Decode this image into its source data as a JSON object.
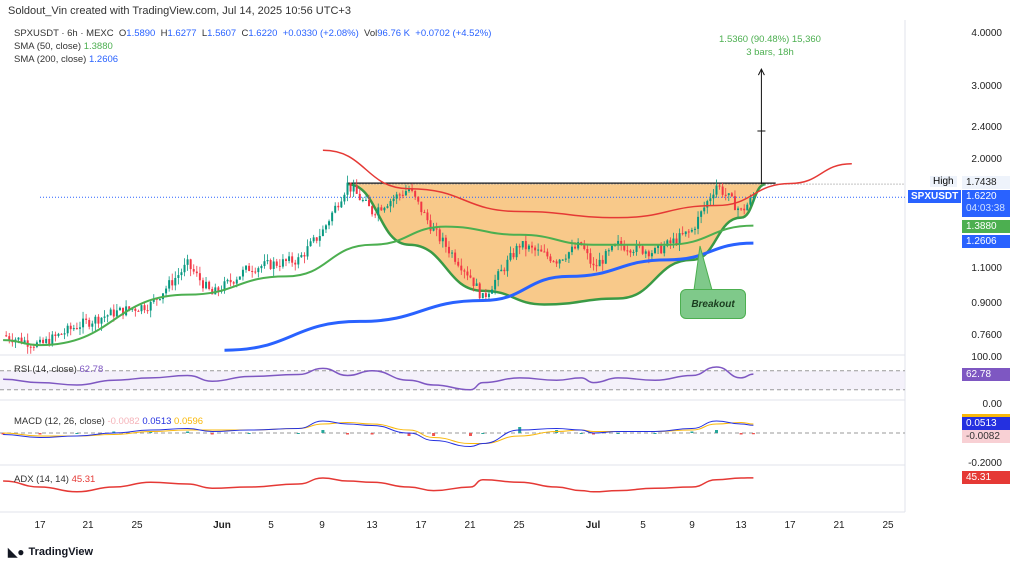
{
  "header": {
    "credit": "Soldout_Vin created with TradingView.com, Jul 14, 2025 10:56 UTC+3"
  },
  "legend": {
    "symbol": "SPXUSDT · 6h · MEXC",
    "o_label": "O",
    "o": "1.5890",
    "h_label": "H",
    "h": "1.6277",
    "l_label": "L",
    "l": "1.5607",
    "c_label": "C",
    "c": "1.6220",
    "change": "+0.0330 (+2.08%)",
    "vol_label": "Vol",
    "vol": "96.76 K",
    "vol_change": "+0.0702 (+4.52%)",
    "sma50_label": "SMA (50, close)",
    "sma50": "1.3880",
    "sma200_label": "SMA (200, close)",
    "sma200": "1.2606"
  },
  "annotation": {
    "measure": "1.5360 (90.48%) 15,360",
    "bars": "3 bars, 18h",
    "callout": "Breakout"
  },
  "price_axis": {
    "ticks": [
      "4.0000",
      "3.0000",
      "2.4000",
      "2.0000",
      "1.1000",
      "0.9000",
      "0.7600"
    ],
    "high_label": "High",
    "high": "1.7438",
    "symbol_tag": "SPXUSDT",
    "last": "1.6220",
    "countdown": "04:03:38",
    "sma50_tag": "1.3880",
    "sma200_tag": "1.2606"
  },
  "time_axis": [
    "17",
    "21",
    "25",
    "Jun",
    "5",
    "9",
    "13",
    "17",
    "21",
    "25",
    "Jul",
    "5",
    "9",
    "13",
    "17",
    "21",
    "25"
  ],
  "rsi": {
    "label": "RSI (14, close)",
    "value": "62.78",
    "top": "100.00"
  },
  "macd": {
    "label": "MACD (12, 26, close)",
    "hist": "-0.0082",
    "macd": "0.0513",
    "signal": "0.0596",
    "zero": "0.00",
    "low": "-0.2000"
  },
  "adx": {
    "label": "ADX (14, 14)",
    "value": "45.31"
  },
  "footer": {
    "brand": "TradingView"
  },
  "colors": {
    "up": "#089981",
    "down": "#f23645",
    "sma50": "#4caf50",
    "sma200": "#2962ff",
    "arc": "#e53935",
    "cup": "#f8c98a",
    "rsi": "#7e57c2",
    "adx": "#e53935"
  },
  "chart_data": {
    "type": "candlestick",
    "scale": "log",
    "ylim": [
      0.7,
      4.2
    ],
    "close": [
      [
        "2025-05-14",
        0.76
      ],
      [
        "2025-05-17",
        0.72
      ],
      [
        "2025-05-20",
        0.8
      ],
      [
        "2025-05-23",
        0.86
      ],
      [
        "2025-05-26",
        0.9
      ],
      [
        "2025-05-29",
        1.12
      ],
      [
        "2025-05-31",
        0.95
      ],
      [
        "2025-06-03",
        1.1
      ],
      [
        "2025-06-07",
        1.15
      ],
      [
        "2025-06-09",
        1.35
      ],
      [
        "2025-06-11",
        1.74
      ],
      [
        "2025-06-13",
        1.5
      ],
      [
        "2025-06-16",
        1.7
      ],
      [
        "2025-06-18",
        1.35
      ],
      [
        "2025-06-21",
        1.05
      ],
      [
        "2025-06-22",
        0.93
      ],
      [
        "2025-06-25",
        1.25
      ],
      [
        "2025-06-28",
        1.15
      ],
      [
        "2025-06-30",
        1.25
      ],
      [
        "2025-07-01",
        1.1
      ],
      [
        "2025-07-03",
        1.25
      ],
      [
        "2025-07-06",
        1.2
      ],
      [
        "2025-07-09",
        1.35
      ],
      [
        "2025-07-11",
        1.74
      ],
      [
        "2025-07-13",
        1.5
      ],
      [
        "2025-07-14",
        1.62
      ]
    ],
    "sma50": [
      [
        "2025-05-14",
        0.74
      ],
      [
        "2025-05-17",
        0.72
      ],
      [
        "2025-05-29",
        0.95
      ],
      [
        "2025-06-06",
        1.05
      ],
      [
        "2025-06-13",
        1.25
      ],
      [
        "2025-06-19",
        1.38
      ],
      [
        "2025-06-25",
        1.32
      ],
      [
        "2025-07-01",
        1.25
      ],
      [
        "2025-07-07",
        1.25
      ],
      [
        "2025-07-14",
        1.388
      ]
    ],
    "sma200": [
      [
        "2025-06-01",
        0.7
      ],
      [
        "2025-06-12",
        0.82
      ],
      [
        "2025-06-22",
        0.92
      ],
      [
        "2025-06-29",
        1.05
      ],
      [
        "2025-07-07",
        1.15
      ],
      [
        "2025-07-14",
        1.2606
      ]
    ],
    "arc": [
      [
        "2025-06-09",
        2.1
      ],
      [
        "2025-06-16",
        1.7
      ],
      [
        "2025-06-25",
        1.5
      ],
      [
        "2025-07-03",
        1.45
      ],
      [
        "2025-07-11",
        1.55
      ],
      [
        "2025-07-17",
        1.75
      ],
      [
        "2025-07-22",
        1.95
      ]
    ],
    "cup": [
      [
        "2025-06-11",
        1.7438
      ],
      [
        "2025-06-16",
        1.25
      ],
      [
        "2025-06-22",
        0.97
      ],
      [
        "2025-06-27",
        0.9
      ],
      [
        "2025-07-03",
        0.93
      ],
      [
        "2025-07-09",
        1.15
      ],
      [
        "2025-07-13",
        1.45
      ],
      [
        "2025-07-15",
        1.7438
      ]
    ],
    "neckline": 1.7438,
    "target": 3.28,
    "rsi": [
      52,
      45,
      40,
      50,
      55,
      60,
      48,
      58,
      62,
      75,
      60,
      70,
      50,
      40,
      30,
      45,
      55,
      50,
      55,
      45,
      55,
      50,
      60,
      78,
      55,
      62.78
    ],
    "macd": [
      -0.01,
      -0.03,
      -0.02,
      0.0,
      0.02,
      0.03,
      0.01,
      0.02,
      0.03,
      0.08,
      0.06,
      0.05,
      0.0,
      -0.05,
      -0.09,
      -0.07,
      0.02,
      0.03,
      0.02,
      0.0,
      0.01,
      0.01,
      0.03,
      0.08,
      0.06,
      0.0513
    ],
    "signal": [
      0.0,
      -0.02,
      -0.02,
      -0.01,
      0.01,
      0.02,
      0.02,
      0.02,
      0.03,
      0.06,
      0.07,
      0.06,
      0.02,
      -0.03,
      -0.07,
      -0.07,
      -0.02,
      0.01,
      0.02,
      0.01,
      0.01,
      0.01,
      0.02,
      0.06,
      0.07,
      0.0596
    ],
    "adx": [
      40,
      30,
      22,
      30,
      38,
      35,
      28,
      30,
      35,
      45,
      40,
      38,
      30,
      24,
      30,
      42,
      38,
      30,
      24,
      22,
      24,
      28,
      30,
      42,
      45,
      45.31
    ]
  }
}
